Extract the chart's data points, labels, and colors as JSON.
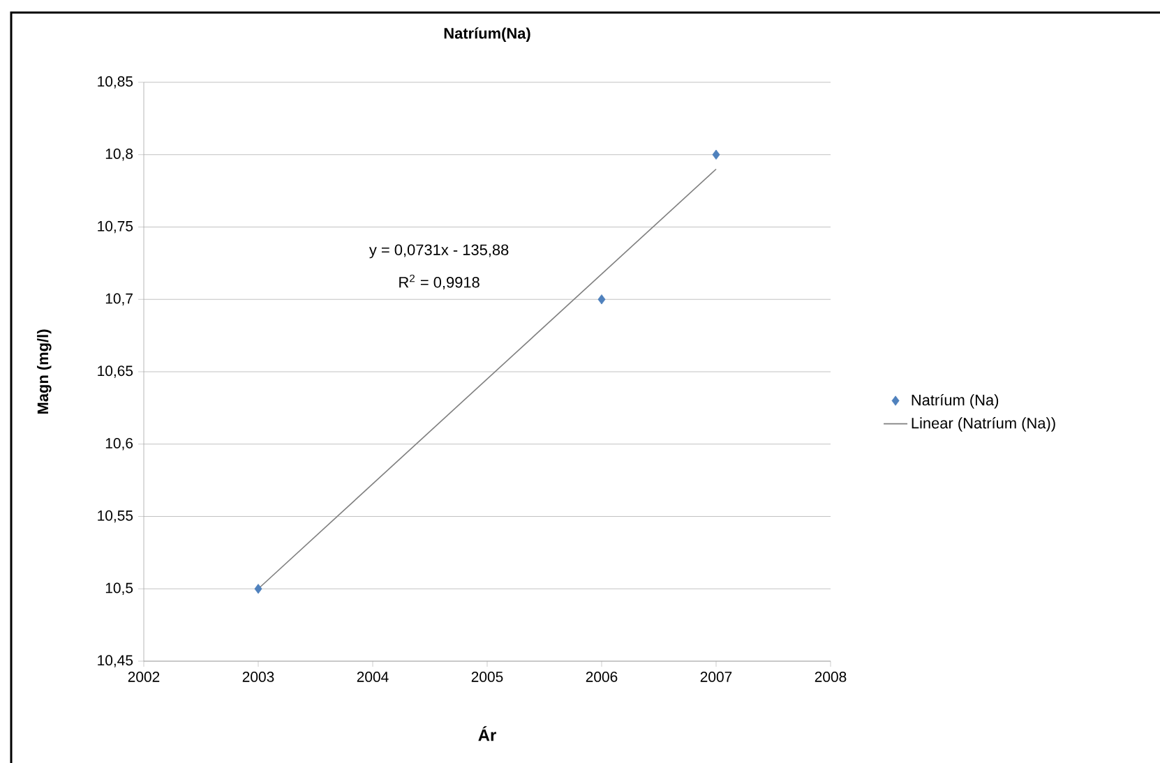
{
  "chart_data": {
    "type": "scatter",
    "title": "Natríum(Na)",
    "xlabel": "Ár",
    "ylabel": "Magn (mg/l)",
    "series": [
      {
        "name": "Natríum (Na)",
        "color": "#4f81bd",
        "x": [
          2003,
          2006,
          2007
        ],
        "values": [
          10.5,
          10.7,
          10.8
        ],
        "marker": "diamond"
      },
      {
        "name": "Linear (Natríum (Na))",
        "type": "line",
        "color": "#7f7f7f",
        "x": [
          2003,
          2007
        ],
        "values": [
          10.5,
          10.79
        ],
        "marker": "none",
        "line_style": "solid"
      }
    ],
    "xlim": [
      2002,
      2008
    ],
    "xticks": [
      2002,
      2003,
      2004,
      2005,
      2006,
      2007,
      2008
    ],
    "ylim": [
      10.45,
      10.85
    ],
    "yticks": [
      {
        "value": 10.45,
        "label": "10,45"
      },
      {
        "value": 10.5,
        "label": "10,5"
      },
      {
        "value": 10.55,
        "label": "10,55"
      },
      {
        "value": 10.6,
        "label": "10,6"
      },
      {
        "value": 10.65,
        "label": "10,65"
      },
      {
        "value": 10.7,
        "label": "10,7"
      },
      {
        "value": 10.75,
        "label": "10,75"
      },
      {
        "value": 10.8,
        "label": "10,8"
      },
      {
        "value": 10.85,
        "label": "10,85"
      }
    ],
    "annotations": [
      "y = 0,0731x - 135,88",
      "R$^{2}$ = 0,9918"
    ],
    "grid": "y",
    "legend": "right"
  }
}
